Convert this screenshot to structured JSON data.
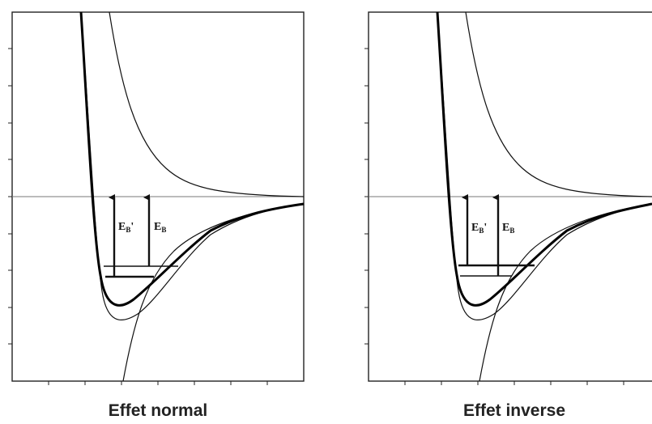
{
  "panels": [
    {
      "caption": "Effet normal",
      "labels": {
        "eb_prime_main": "E",
        "eb_prime_sub": "B",
        "eb_prime_mark": "'",
        "eb_main": "E",
        "eb_sub": "B"
      },
      "levels": {
        "eb_prime_level": "lower",
        "eb_level": "upper"
      }
    },
    {
      "caption": "Effet inverse",
      "labels": {
        "eb_prime_main": "E",
        "eb_prime_sub": "B",
        "eb_prime_mark": "'",
        "eb_main": "E",
        "eb_sub": "B"
      },
      "levels": {
        "eb_prime_level": "upper",
        "eb_level": "lower"
      }
    }
  ],
  "colors": {
    "line": "#111111",
    "axis": "#222222",
    "zero_line": "#777777"
  }
}
